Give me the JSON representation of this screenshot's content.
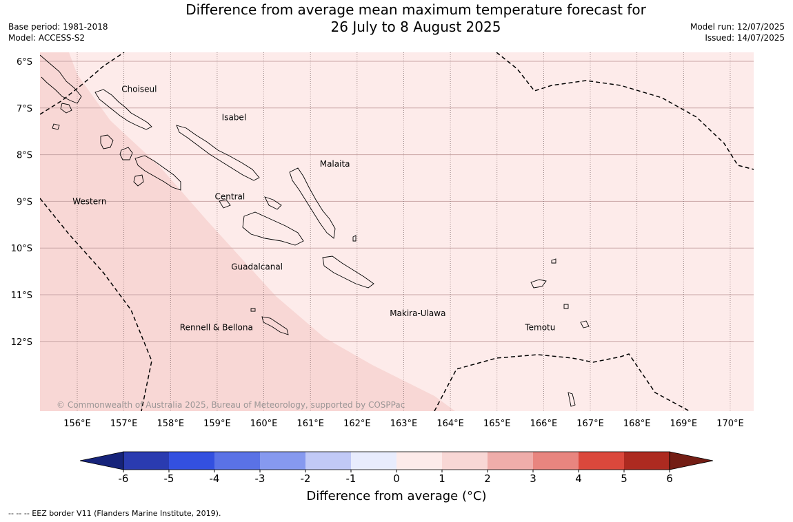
{
  "title": {
    "line1": "Difference from average mean maximum temperature forecast for",
    "line2": "26 July to 8 August 2025"
  },
  "meta_left": {
    "base_period": "Base period: 1981-2018",
    "model": "Model: ACCESS-S2"
  },
  "meta_right": {
    "model_run": "Model run: 12/07/2025",
    "issued": "Issued: 14/07/2025"
  },
  "map": {
    "lon_range": [
      155.2,
      170.5
    ],
    "lat_range": [
      -13.5,
      -5.8
    ],
    "lon_ticks": [
      156,
      157,
      158,
      159,
      160,
      161,
      162,
      163,
      164,
      165,
      166,
      167,
      168,
      169,
      170
    ],
    "lon_tick_labels": [
      "156°E",
      "157°E",
      "158°E",
      "159°E",
      "160°E",
      "161°E",
      "162°E",
      "163°E",
      "164°E",
      "165°E",
      "166°E",
      "167°E",
      "168°E",
      "169°E",
      "170°E"
    ],
    "lat_ticks": [
      -6,
      -7,
      -8,
      -9,
      -10,
      -11,
      -12
    ],
    "lat_tick_labels": [
      "6°S",
      "7°S",
      "8°S",
      "9°S",
      "10°S",
      "11°S",
      "12°S"
    ],
    "grid_color": "#c9a6a6",
    "fill_colors": {
      "band_0_1": "#fdebea",
      "band_1_2": "#f8d7d5"
    },
    "province_labels": [
      {
        "name": "Choiseul",
        "lon": 156.95,
        "lat": -6.6
      },
      {
        "name": "Isabel",
        "lon": 159.1,
        "lat": -7.2
      },
      {
        "name": "Malaita",
        "lon": 161.2,
        "lat": -8.2
      },
      {
        "name": "Western",
        "lon": 155.9,
        "lat": -9.0
      },
      {
        "name": "Central",
        "lon": 158.95,
        "lat": -8.9
      },
      {
        "name": "Guadalcanal",
        "lon": 159.3,
        "lat": -10.4
      },
      {
        "name": "Makira-Ulawa",
        "lon": 162.7,
        "lat": -11.4
      },
      {
        "name": "Rennell & Bellona",
        "lon": 158.2,
        "lat": -11.7
      },
      {
        "name": "Temotu",
        "lon": 165.6,
        "lat": -11.7
      }
    ],
    "copyright": "© Commonwealth of Australia 2025, Bureau of Meteorology, supported by COSPPac"
  },
  "colorbar": {
    "min_color": "#16237a",
    "max_color": "#731d14",
    "colors": [
      "#2a3bb0",
      "#3350e0",
      "#5a72e6",
      "#8699ef",
      "#c1c9f6",
      "#e8ecfd",
      "#fdebea",
      "#f8d7d5",
      "#efadaa",
      "#e8857f",
      "#db483c",
      "#ad2a20"
    ],
    "tick_labels": [
      "-6",
      "-5",
      "-4",
      "-3",
      "-2",
      "-1",
      "0",
      "1",
      "2",
      "3",
      "4",
      "5",
      "6"
    ],
    "label": "Difference from average (°C)"
  },
  "footnote": "--  --  -- EEZ border V11 (Flanders Marine Institute, 2019)."
}
